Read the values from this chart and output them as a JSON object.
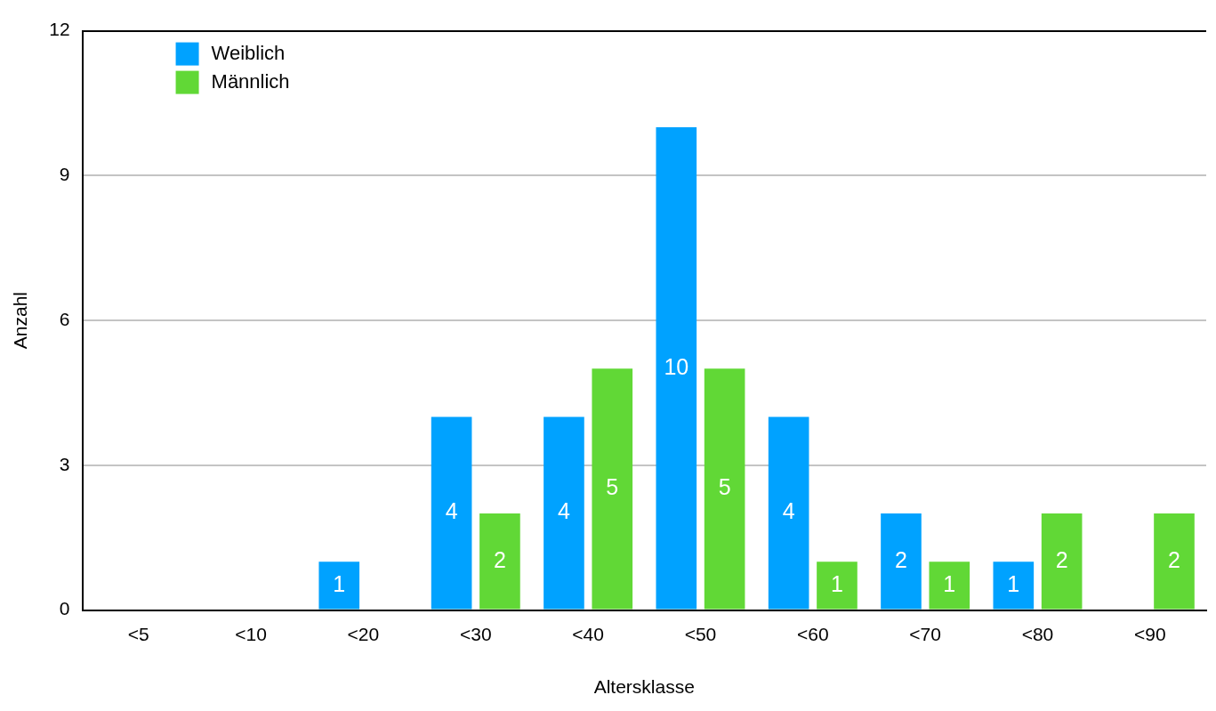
{
  "chart_data": {
    "type": "bar",
    "xlabel": "Altersklasse",
    "ylabel": "Anzahl",
    "categories": [
      "<5",
      "<10",
      "<20",
      "<30",
      "<40",
      "<50",
      "<60",
      "<70",
      "<80",
      "<90"
    ],
    "series": [
      {
        "name": "Weiblich",
        "color": "#00a2ff",
        "values": [
          0,
          0,
          1,
          4,
          4,
          10,
          4,
          2,
          1,
          0
        ],
        "value_labels": [
          null,
          null,
          "1",
          "4",
          "4",
          "10",
          "4",
          "2",
          "1",
          null
        ]
      },
      {
        "name": "Männlich",
        "color": "#61d836",
        "values": [
          0,
          0,
          0,
          2,
          5,
          5,
          1,
          1,
          2,
          2
        ],
        "value_labels": [
          null,
          null,
          null,
          "2",
          "5",
          "5",
          "1",
          "1",
          "2",
          "2"
        ]
      }
    ],
    "ylim": [
      0,
      12
    ],
    "yticks": [
      0,
      3,
      6,
      9,
      12
    ],
    "grid": "y",
    "legend": "top left"
  }
}
